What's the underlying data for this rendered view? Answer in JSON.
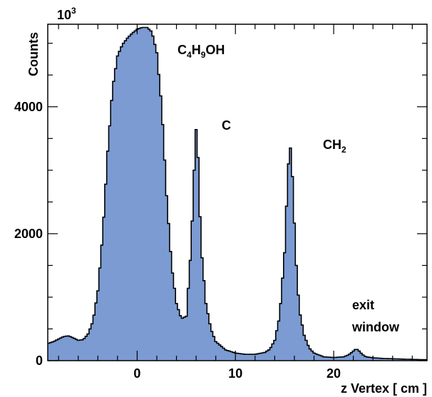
{
  "chart_data": {
    "type": "area",
    "title": "",
    "xlabel": "z Vertex [ cm ]",
    "ylabel": "Counts",
    "y_multiplier": "10",
    "y_multiplier_exp": "3",
    "xlim": [
      -9.1,
      29.5
    ],
    "ylim": [
      0,
      5300
    ],
    "x_ticks": [
      0,
      10,
      20
    ],
    "x_tick_labels": [
      "0",
      "10",
      "20"
    ],
    "y_ticks": [
      0,
      2000,
      4000
    ],
    "y_tick_labels": [
      "0",
      "2000",
      "4000"
    ],
    "grid": false,
    "fill_color": "#7b9bd2",
    "line_color": "#000000",
    "series": [
      {
        "x": [
          -9.1,
          -8.5,
          -8,
          -7.5,
          -7,
          -6.5,
          -6,
          -5.5,
          -5,
          -4.5,
          -4,
          -3.5,
          -3,
          -2.5,
          -2,
          -1.5,
          -1,
          -0.5,
          0,
          0.5,
          1,
          1.5,
          2,
          2.5,
          3,
          3.5,
          4,
          4.5,
          5,
          5.5,
          5.8,
          6,
          6.2,
          6.5,
          7,
          7.5,
          8,
          9,
          10,
          11,
          12,
          13,
          13.5,
          14,
          14.5,
          15,
          15.3,
          15.5,
          15.7,
          15.9,
          16.2,
          16.5,
          17,
          17.5,
          18,
          19,
          20,
          21,
          21.5,
          22,
          22.3,
          22.6,
          22.9,
          23.3,
          24,
          25,
          26,
          27,
          28,
          29.5
        ],
        "y": [
          270,
          300,
          340,
          380,
          390,
          360,
          320,
          330,
          420,
          620,
          1100,
          2000,
          3300,
          4300,
          4800,
          4980,
          5080,
          5160,
          5220,
          5250,
          5250,
          5180,
          4850,
          4000,
          2600,
          1500,
          900,
          660,
          700,
          1800,
          3000,
          3640,
          3200,
          1800,
          900,
          500,
          300,
          170,
          120,
          100,
          100,
          130,
          180,
          320,
          700,
          1700,
          2800,
          3400,
          3300,
          2500,
          1500,
          800,
          400,
          200,
          120,
          60,
          50,
          60,
          90,
          150,
          190,
          150,
          100,
          60,
          45,
          35,
          30,
          25,
          20,
          15
        ]
      }
    ],
    "annotations": [
      {
        "id": "c4h9oh",
        "base": "C",
        "sub1": "4",
        "mid": "H",
        "sub2": "9",
        "end": "OH"
      },
      {
        "id": "c",
        "text": "C"
      },
      {
        "id": "ch2",
        "base": "CH",
        "sub": "2"
      },
      {
        "id": "exit",
        "line1": "exit",
        "line2": "window"
      }
    ]
  }
}
